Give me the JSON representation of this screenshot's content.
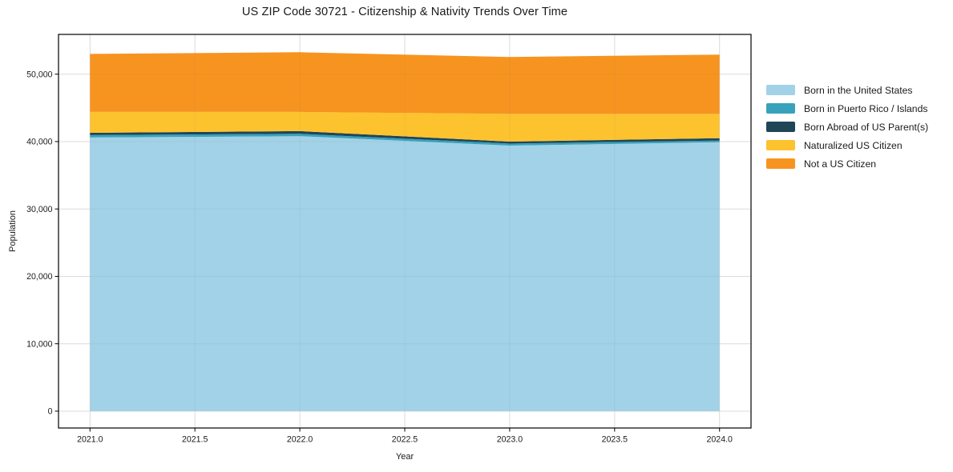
{
  "chart_data": {
    "type": "area",
    "stacked": true,
    "title": "US ZIP Code 30721 - Citizenship & Nativity Trends Over Time",
    "xlabel": "Year",
    "ylabel": "Population",
    "x": [
      2021.0,
      2022.0,
      2023.0,
      2024.0
    ],
    "series": [
      {
        "name": "Born in the United States",
        "color": "#a2d2e7",
        "values": [
          40600,
          40800,
          39400,
          39900
        ]
      },
      {
        "name": "Born in Puerto Rico / Islands",
        "color": "#38a2bc",
        "values": [
          350,
          350,
          300,
          250
        ]
      },
      {
        "name": "Born Abroad of US Parent(s)",
        "color": "#1f4557",
        "values": [
          350,
          400,
          300,
          350
        ]
      },
      {
        "name": "Naturalized US Citizen",
        "color": "#fdc32e",
        "values": [
          3100,
          2850,
          4100,
          3600
        ]
      },
      {
        "name": "Not a US Citizen",
        "color": "#f79420",
        "values": [
          8600,
          8850,
          8450,
          8800
        ]
      }
    ],
    "totals": [
      53000,
      53250,
      52550,
      52900
    ],
    "xticks": [
      2021.0,
      2021.5,
      2022.0,
      2022.5,
      2023.0,
      2023.5,
      2024.0
    ],
    "yticks": [
      0,
      10000,
      20000,
      30000,
      40000,
      50000
    ],
    "xlim": [
      2020.85,
      2024.15
    ],
    "ylim": [
      -2500,
      55900
    ],
    "grid": true,
    "legend_position": "right-outside",
    "background_color": "#ffffff",
    "spine_color": "#000000",
    "grid_color": "#e7e7e7",
    "text_color": "#1a1a1a"
  }
}
